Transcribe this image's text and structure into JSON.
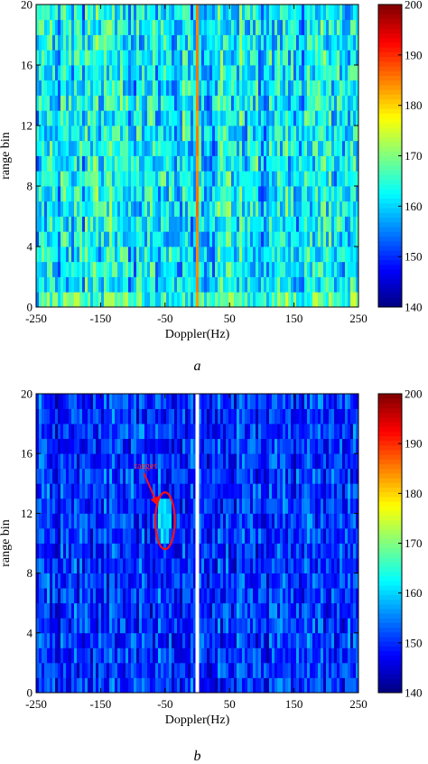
{
  "chart_data": [
    {
      "type": "heatmap",
      "panel_label": "a",
      "xlabel": "Doppler(Hz)",
      "ylabel": "range bin",
      "xlim": [
        -250,
        250
      ],
      "ylim": [
        0,
        20
      ],
      "xticks": [
        "-250",
        "-150",
        "-50",
        "50",
        "150",
        "250"
      ],
      "xtick_values": [
        -250,
        -150,
        -50,
        50,
        150,
        250
      ],
      "yticks": [
        "0",
        "4",
        "8",
        "12",
        "16",
        "20"
      ],
      "ytick_values": [
        0,
        4,
        8,
        12,
        16,
        20
      ],
      "colorbar": {
        "colormap": "jet",
        "range": [
          140,
          200
        ],
        "ticks": [
          "140",
          "150",
          "160",
          "170",
          "180",
          "190",
          "200"
        ],
        "tick_values": [
          140,
          150,
          160,
          170,
          180,
          190,
          200
        ]
      },
      "description": "Clutter-dominated range-Doppler map; strong stripe at 0 Hz",
      "background_level": 162,
      "zero_doppler_level": 185
    },
    {
      "type": "heatmap",
      "panel_label": "b",
      "xlabel": "Doppler(Hz)",
      "ylabel": "range bin",
      "xlim": [
        -250,
        250
      ],
      "ylim": [
        0,
        20
      ],
      "xticks": [
        "-250",
        "-150",
        "-50",
        "50",
        "150",
        "250"
      ],
      "xtick_values": [
        -250,
        -150,
        -50,
        50,
        150,
        250
      ],
      "yticks": [
        "0",
        "4",
        "8",
        "12",
        "16",
        "20"
      ],
      "ytick_values": [
        0,
        4,
        8,
        12,
        16,
        20
      ],
      "colorbar": {
        "colormap": "jet",
        "range": [
          140,
          200
        ],
        "ticks": [
          "140",
          "150",
          "160",
          "170",
          "180",
          "190",
          "200"
        ],
        "tick_values": [
          140,
          150,
          160,
          170,
          180,
          190,
          200
        ]
      },
      "background_level": 150,
      "notch_doppler": 0,
      "annotation": {
        "text": "target",
        "doppler": -50,
        "range_bin": 11.5,
        "ellipse_doppler_halfwidth": 15,
        "ellipse_range_halfheight": 1.9,
        "target_level": 166,
        "label_doppler": -80,
        "label_range_bin": 15
      }
    }
  ]
}
